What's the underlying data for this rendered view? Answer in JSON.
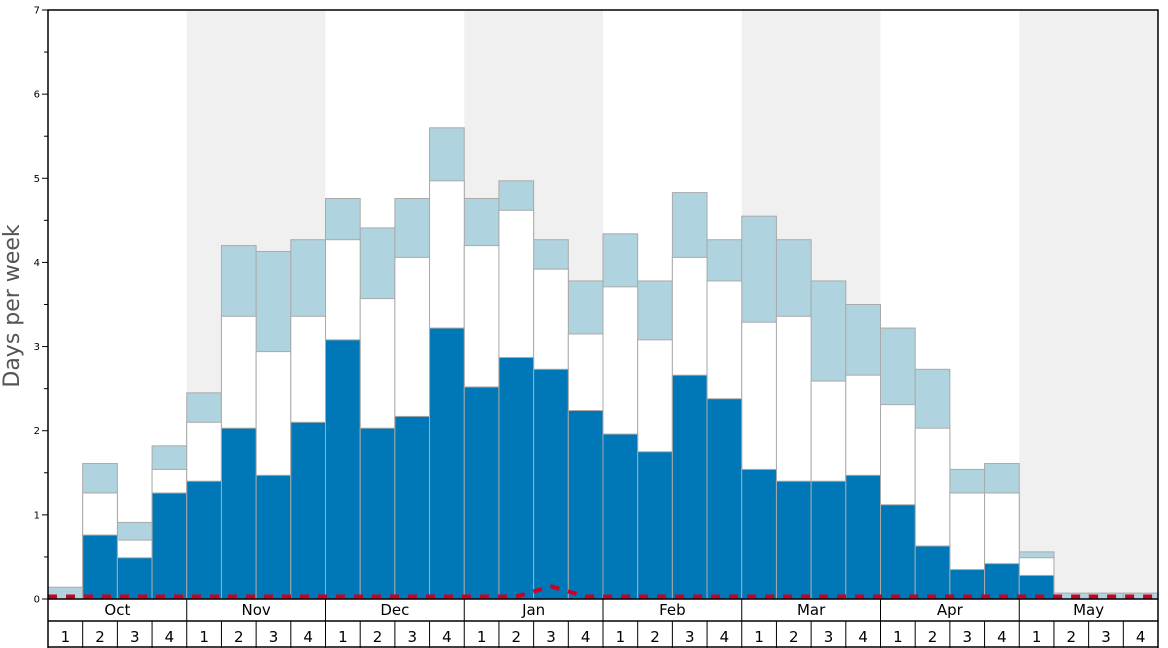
{
  "chart_data": {
    "type": "bar",
    "ylabel": "Days per week",
    "ylim": [
      0,
      7
    ],
    "y_ticks": [
      "0",
      "1",
      "2",
      "3",
      "4",
      "5",
      "6",
      "7"
    ],
    "months": [
      "Oct",
      "Nov",
      "Dec",
      "Jan",
      "Feb",
      "Mar",
      "Apr",
      "May"
    ],
    "week_labels": [
      "1",
      "2",
      "3",
      "4",
      "1",
      "2",
      "3",
      "4",
      "1",
      "2",
      "3",
      "4",
      "1",
      "2",
      "3",
      "4",
      "1",
      "2",
      "3",
      "4",
      "1",
      "2",
      "3",
      "4",
      "1",
      "2",
      "3",
      "4",
      "1",
      "2",
      "3",
      "4"
    ],
    "colors": {
      "low": "#0077b6",
      "mid": "#ffffff",
      "high": "#afd3df",
      "border": "#aaaaaa",
      "shade": "#f0f0f0",
      "dashed_line": "#cc0022",
      "axis": "#000000"
    },
    "series": [
      {
        "values": [
          0.0,
          0.76,
          0.49,
          1.26,
          1.4,
          2.03,
          1.47,
          2.1,
          3.08,
          2.03,
          2.17,
          3.22,
          2.52,
          2.87,
          2.73,
          2.24,
          1.96,
          1.75,
          2.66,
          2.38,
          1.54,
          1.4,
          1.4,
          1.47,
          1.12,
          0.63,
          0.35,
          0.42,
          0.28,
          0.0,
          0.0,
          0.0
        ]
      },
      {
        "values": [
          0.0,
          1.26,
          0.7,
          1.54,
          2.1,
          3.36,
          2.94,
          3.36,
          4.27,
          3.57,
          4.06,
          4.97,
          4.2,
          4.62,
          3.92,
          3.15,
          3.71,
          3.08,
          4.06,
          3.78,
          3.29,
          3.36,
          2.59,
          2.66,
          2.31,
          2.03,
          1.26,
          1.26,
          0.49,
          0.0,
          0.0,
          0.0
        ]
      },
      {
        "values": [
          0.14,
          1.61,
          0.91,
          1.82,
          2.45,
          4.2,
          4.13,
          4.27,
          4.76,
          4.41,
          4.76,
          5.6,
          4.76,
          4.97,
          4.27,
          3.78,
          4.34,
          3.78,
          4.83,
          4.27,
          4.55,
          4.27,
          3.78,
          3.5,
          3.22,
          2.73,
          1.54,
          1.61,
          0.56,
          0.07,
          0.07,
          0.07
        ]
      }
    ],
    "dashed_line_values": [
      0.03,
      0.03,
      0.03,
      0.03,
      0.03,
      0.03,
      0.03,
      0.03,
      0.03,
      0.03,
      0.03,
      0.03,
      0.03,
      0.03,
      0.15,
      0.03,
      0.03,
      0.03,
      0.03,
      0.03,
      0.03,
      0.03,
      0.03,
      0.03,
      0.03,
      0.03,
      0.03,
      0.03,
      0.03,
      0.03,
      0.03,
      0.03
    ]
  }
}
